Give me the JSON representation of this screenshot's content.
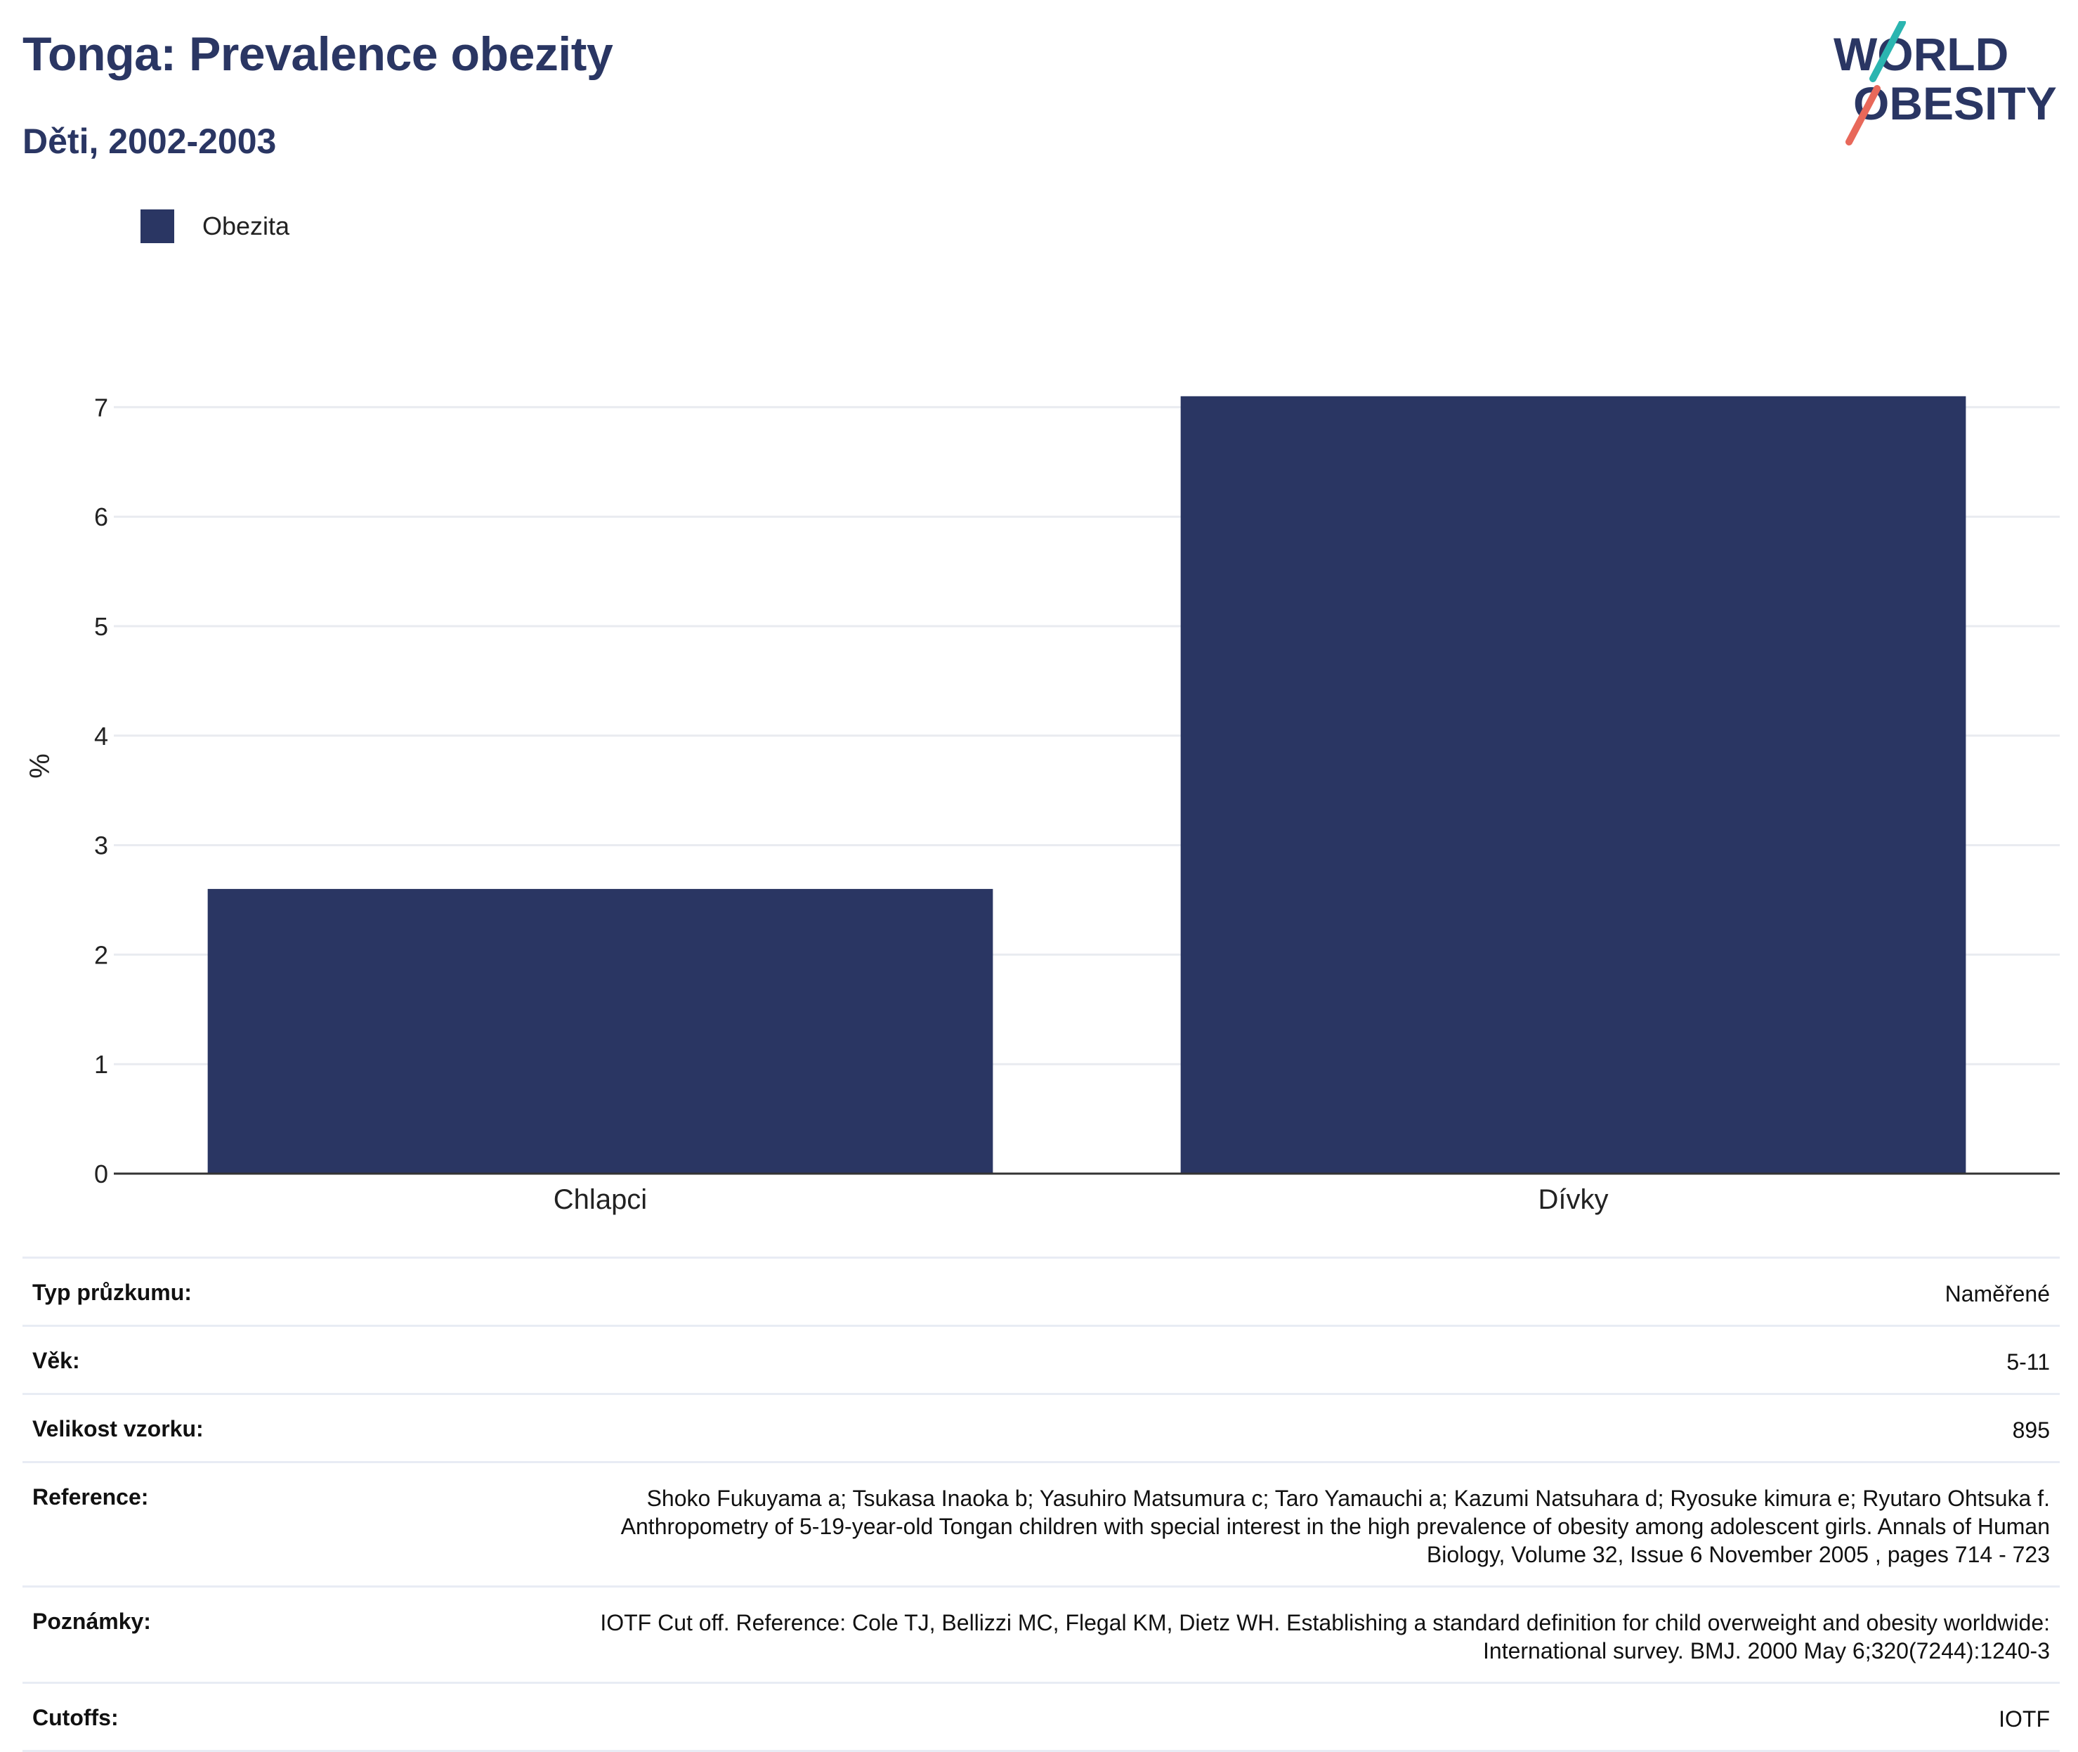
{
  "header": {
    "title": "Tonga: Prevalence obezity",
    "subtitle": "Děti, 2002-2003"
  },
  "logo": {
    "line1": "WORLD",
    "line2": "OBESITY"
  },
  "legend": {
    "label": "Obezita",
    "color": "#2a3663"
  },
  "chart_data": {
    "type": "bar",
    "categories": [
      "Chlapci",
      "Dívky"
    ],
    "series": [
      {
        "name": "Obezita",
        "values": [
          2.6,
          7.1
        ]
      }
    ],
    "ylabel": "%",
    "ylim": [
      0,
      7.4
    ],
    "yticks": [
      0,
      1,
      2,
      3,
      4,
      5,
      6,
      7
    ],
    "grid": true,
    "legend_position": "top-left",
    "bar_color": "#2a3663"
  },
  "info_table": [
    {
      "key": "Typ průzkumu:",
      "value": "Naměřené"
    },
    {
      "key": "Věk:",
      "value": "5-11"
    },
    {
      "key": "Velikost vzorku:",
      "value": "895"
    },
    {
      "key": "Reference:",
      "value": "Shoko Fukuyama a;  Tsukasa Inaoka b;  Yasuhiro Matsumura c;  Taro Yamauchi a;  Kazumi Natsuhara d;  Ryosuke kimura e; Ryutaro Ohtsuka f. Anthropometry of 5-19-year-old Tongan children with special interest in the high prevalence of obesity among adolescent girls. Annals of Human Biology, Volume 32, Issue 6 November 2005 , pages 714 - 723"
    },
    {
      "key": "Poznámky:",
      "value": "IOTF Cut off. Reference: Cole TJ, Bellizzi MC, Flegal KM, Dietz WH. Establishing a standard definition for child overweight and obesity worldwide: International survey. BMJ. 2000 May 6;320(7244):1240-3"
    },
    {
      "key": "Cutoffs:",
      "value": "IOTF"
    }
  ]
}
